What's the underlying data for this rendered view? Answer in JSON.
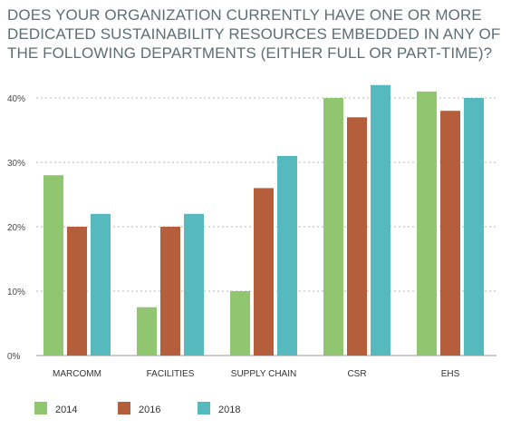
{
  "chart_data": {
    "type": "bar",
    "title": "DOES YOUR ORGANIZATION CURRENTLY HAVE ONE OR MORE DEDICATED SUSTAINABILITY RESOURCES EMBEDDED IN ANY OF THE FOLLOWING DEPARTMENTS (EITHER FULL OR PART-TIME)?",
    "categories": [
      "MARCOMM",
      "FACILITIES",
      "SUPPLY CHAIN",
      "CSR",
      "EHS"
    ],
    "series": [
      {
        "name": "2014",
        "color": "#8fc66f",
        "values": [
          28,
          7.5,
          10,
          40,
          41
        ]
      },
      {
        "name": "2016",
        "color": "#b45e3c",
        "values": [
          20,
          20,
          26,
          37,
          38
        ]
      },
      {
        "name": "2018",
        "color": "#55b9bd",
        "values": [
          22,
          22,
          31,
          42,
          40
        ]
      }
    ],
    "yticks": [
      "0%",
      "10%",
      "20%",
      "30%",
      "40%"
    ],
    "ylim": [
      0,
      40
    ],
    "xlabel": "",
    "ylabel": "",
    "grid": true,
    "legend_position": "bottom-left"
  }
}
